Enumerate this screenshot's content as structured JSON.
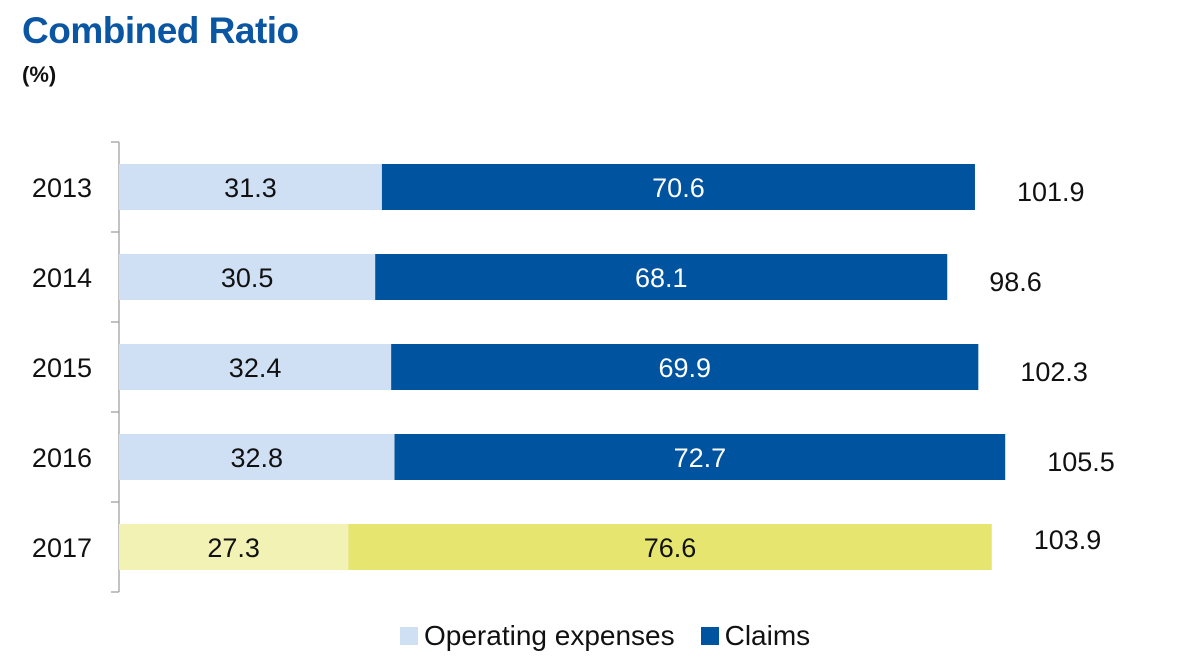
{
  "title": "Combined Ratio",
  "subtitle": "(%)",
  "colors": {
    "operating_expenses": "#CFE0F5",
    "claims": "#00539F",
    "operating_expenses_highlight": "#F2F2B4",
    "claims_highlight": "#E5E570",
    "axis": "#999999",
    "text_dark": "#111111",
    "text_light": "#ffffff"
  },
  "legend": {
    "items": [
      {
        "label": "Operating expenses",
        "color": "#CFE0F5"
      },
      {
        "label": "Claims",
        "color": "#00539F"
      }
    ]
  },
  "chart_data": {
    "type": "bar",
    "orientation": "horizontal",
    "stacked": true,
    "categories": [
      "2013",
      "2014",
      "2015",
      "2016",
      "2017"
    ],
    "series": [
      {
        "name": "Operating expenses",
        "values": [
          31.3,
          30.5,
          32.4,
          32.8,
          27.3
        ]
      },
      {
        "name": "Claims",
        "values": [
          70.6,
          68.1,
          69.9,
          72.7,
          76.6
        ]
      }
    ],
    "totals": [
      101.9,
      98.6,
      102.3,
      105.5,
      103.9
    ],
    "highlight_category": "2017",
    "title": "Combined Ratio",
    "subtitle": "(%)",
    "xlabel": "",
    "ylabel": "",
    "grid": false,
    "legend_position": "bottom"
  }
}
